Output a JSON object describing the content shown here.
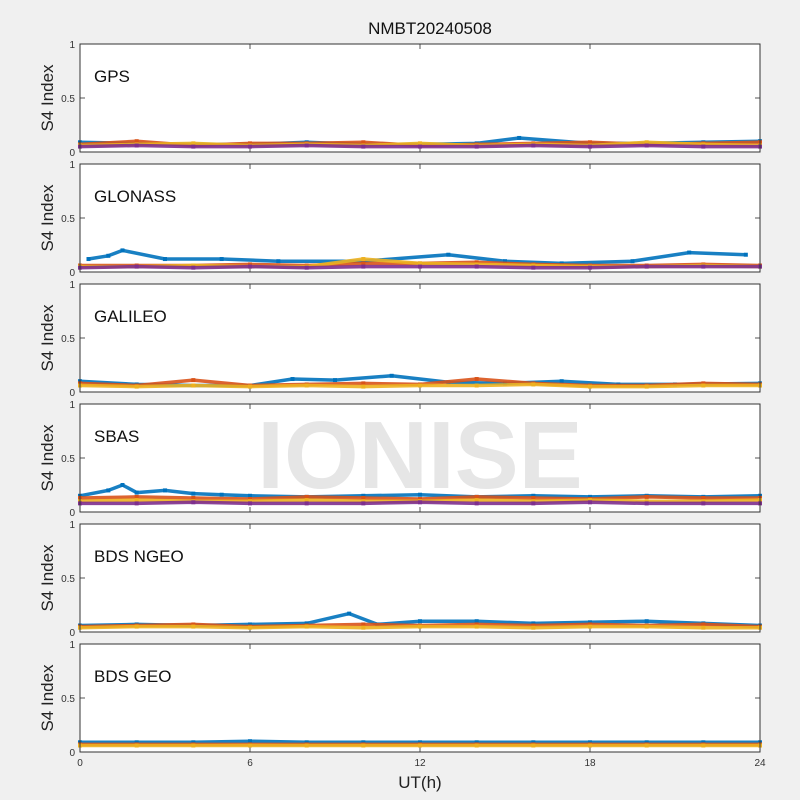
{
  "title": "NMBT20240508",
  "watermark": "IONISE",
  "colors": [
    "#0072bd",
    "#d95319",
    "#edb120",
    "#7e2f8e",
    "#77ac30",
    "#4dbeee",
    "#a2142f"
  ],
  "chart_data": {
    "type": "scatter",
    "title": "NMBT20240508",
    "xlabel": "UT(h)",
    "ylabel": "S4 Index",
    "xlim": [
      0,
      24
    ],
    "ylim": [
      0,
      1
    ],
    "xticks": [
      "0",
      "6",
      "12",
      "18",
      "24"
    ],
    "yticks": [
      "0",
      "0.5",
      "1"
    ],
    "panels": [
      {
        "label": "GPS",
        "series": [
          {
            "x": [
              0,
              2,
              4,
              6,
              8,
              10,
              12,
              14,
              15.5,
              18,
              20,
              22,
              24
            ],
            "y": [
              0.09,
              0.08,
              0.07,
              0.07,
              0.09,
              0.07,
              0.07,
              0.08,
              0.13,
              0.08,
              0.08,
              0.09,
              0.1
            ]
          },
          {
            "x": [
              0,
              2,
              4,
              6,
              8,
              10,
              12,
              14,
              16,
              18,
              20,
              22,
              24
            ],
            "y": [
              0.07,
              0.1,
              0.06,
              0.08,
              0.08,
              0.09,
              0.06,
              0.07,
              0.08,
              0.09,
              0.07,
              0.08,
              0.09
            ]
          },
          {
            "x": [
              0,
              2,
              4,
              6,
              8,
              10,
              12,
              14,
              16,
              18,
              20,
              22,
              24
            ],
            "y": [
              0.06,
              0.07,
              0.08,
              0.06,
              0.07,
              0.06,
              0.08,
              0.06,
              0.07,
              0.06,
              0.09,
              0.07,
              0.06
            ]
          },
          {
            "x": [
              0,
              2,
              4,
              6,
              8,
              10,
              12,
              14,
              16,
              18,
              20,
              22,
              24
            ],
            "y": [
              0.05,
              0.06,
              0.05,
              0.05,
              0.06,
              0.05,
              0.05,
              0.05,
              0.06,
              0.05,
              0.06,
              0.05,
              0.05
            ]
          }
        ]
      },
      {
        "label": "GLONASS",
        "series": [
          {
            "x": [
              0.3,
              1,
              1.5,
              3,
              5,
              7,
              10,
              13,
              15,
              17,
              19.5,
              21.5,
              23.5
            ],
            "y": [
              0.12,
              0.15,
              0.2,
              0.12,
              0.12,
              0.1,
              0.1,
              0.16,
              0.1,
              0.08,
              0.1,
              0.18,
              0.16
            ]
          },
          {
            "x": [
              0,
              2,
              4,
              6,
              8,
              10,
              12,
              14,
              16,
              18,
              20,
              22,
              24
            ],
            "y": [
              0.06,
              0.06,
              0.06,
              0.07,
              0.06,
              0.08,
              0.08,
              0.09,
              0.07,
              0.06,
              0.06,
              0.07,
              0.06
            ]
          },
          {
            "x": [
              0,
              2,
              4,
              6,
              8,
              10,
              12,
              14,
              16,
              18,
              20,
              22,
              24
            ],
            "y": [
              0.05,
              0.05,
              0.06,
              0.05,
              0.05,
              0.12,
              0.08,
              0.07,
              0.06,
              0.05,
              0.05,
              0.06,
              0.05
            ]
          },
          {
            "x": [
              0,
              2,
              4,
              6,
              8,
              10,
              12,
              14,
              16,
              18,
              20,
              22,
              24
            ],
            "y": [
              0.04,
              0.05,
              0.04,
              0.05,
              0.04,
              0.05,
              0.05,
              0.05,
              0.04,
              0.04,
              0.05,
              0.05,
              0.05
            ]
          }
        ]
      },
      {
        "label": "GALILEO",
        "series": [
          {
            "x": [
              0,
              2,
              4,
              6,
              7.5,
              9,
              11,
              13,
              15,
              17,
              19,
              21,
              24
            ],
            "y": [
              0.1,
              0.07,
              0.06,
              0.06,
              0.12,
              0.11,
              0.15,
              0.09,
              0.08,
              0.1,
              0.07,
              0.07,
              0.08
            ]
          },
          {
            "x": [
              0,
              2,
              4,
              6,
              8,
              10,
              12,
              14,
              16,
              18,
              20,
              22,
              24
            ],
            "y": [
              0.08,
              0.06,
              0.11,
              0.06,
              0.07,
              0.08,
              0.07,
              0.12,
              0.08,
              0.06,
              0.06,
              0.08,
              0.07
            ]
          },
          {
            "x": [
              0,
              2,
              4,
              6,
              8,
              10,
              12,
              14,
              16,
              18,
              20,
              22,
              24
            ],
            "y": [
              0.06,
              0.05,
              0.06,
              0.05,
              0.06,
              0.05,
              0.06,
              0.06,
              0.07,
              0.05,
              0.05,
              0.06,
              0.06
            ]
          }
        ]
      },
      {
        "label": "SBAS",
        "series": [
          {
            "x": [
              0,
              1,
              1.5,
              2,
              3,
              4,
              5,
              6,
              8,
              10,
              12,
              14,
              16,
              18,
              20,
              22,
              24
            ],
            "y": [
              0.15,
              0.2,
              0.25,
              0.18,
              0.2,
              0.17,
              0.16,
              0.15,
              0.14,
              0.15,
              0.16,
              0.14,
              0.15,
              0.14,
              0.15,
              0.14,
              0.15
            ]
          },
          {
            "x": [
              0,
              2,
              4,
              6,
              8,
              10,
              12,
              14,
              16,
              18,
              20,
              22,
              24
            ],
            "y": [
              0.13,
              0.14,
              0.13,
              0.12,
              0.14,
              0.13,
              0.12,
              0.14,
              0.13,
              0.12,
              0.14,
              0.13,
              0.13
            ]
          },
          {
            "x": [
              0,
              2,
              4,
              6,
              8,
              10,
              12,
              14,
              16,
              18,
              20,
              22,
              24
            ],
            "y": [
              0.1,
              0.11,
              0.1,
              0.1,
              0.11,
              0.1,
              0.1,
              0.11,
              0.1,
              0.11,
              0.1,
              0.1,
              0.11
            ]
          },
          {
            "x": [
              0,
              2,
              4,
              6,
              8,
              10,
              12,
              14,
              16,
              18,
              20,
              22,
              24
            ],
            "y": [
              0.08,
              0.08,
              0.09,
              0.08,
              0.08,
              0.08,
              0.09,
              0.08,
              0.08,
              0.09,
              0.08,
              0.08,
              0.08
            ]
          }
        ]
      },
      {
        "label": "BDS NGEO",
        "series": [
          {
            "x": [
              0,
              2,
              4,
              6,
              8,
              9.5,
              10.5,
              12,
              14,
              16,
              18,
              20,
              22,
              24
            ],
            "y": [
              0.06,
              0.07,
              0.06,
              0.07,
              0.08,
              0.17,
              0.07,
              0.1,
              0.1,
              0.08,
              0.09,
              0.1,
              0.08,
              0.06
            ]
          },
          {
            "x": [
              0,
              2,
              4,
              6,
              8,
              10,
              12,
              14,
              16,
              18,
              20,
              22,
              24
            ],
            "y": [
              0.05,
              0.06,
              0.07,
              0.05,
              0.06,
              0.07,
              0.06,
              0.07,
              0.06,
              0.07,
              0.06,
              0.07,
              0.05
            ]
          },
          {
            "x": [
              0,
              2,
              4,
              6,
              8,
              10,
              12,
              14,
              16,
              18,
              20,
              22,
              24
            ],
            "y": [
              0.04,
              0.05,
              0.05,
              0.04,
              0.05,
              0.04,
              0.05,
              0.05,
              0.04,
              0.05,
              0.05,
              0.04,
              0.04
            ]
          }
        ]
      },
      {
        "label": "BDS GEO",
        "series": [
          {
            "x": [
              0,
              2,
              4,
              6,
              8,
              10,
              12,
              14,
              16,
              18,
              20,
              22,
              24
            ],
            "y": [
              0.09,
              0.09,
              0.09,
              0.1,
              0.09,
              0.09,
              0.09,
              0.09,
              0.09,
              0.09,
              0.09,
              0.09,
              0.09
            ]
          },
          {
            "x": [
              0,
              2,
              4,
              6,
              8,
              10,
              12,
              14,
              16,
              18,
              20,
              22,
              24
            ],
            "y": [
              0.07,
              0.07,
              0.07,
              0.07,
              0.07,
              0.07,
              0.07,
              0.07,
              0.07,
              0.07,
              0.07,
              0.07,
              0.07
            ]
          },
          {
            "x": [
              0,
              2,
              4,
              6,
              8,
              10,
              12,
              14,
              16,
              18,
              20,
              22,
              24
            ],
            "y": [
              0.06,
              0.06,
              0.06,
              0.06,
              0.06,
              0.06,
              0.06,
              0.06,
              0.06,
              0.06,
              0.06,
              0.06,
              0.06
            ]
          }
        ]
      }
    ]
  }
}
